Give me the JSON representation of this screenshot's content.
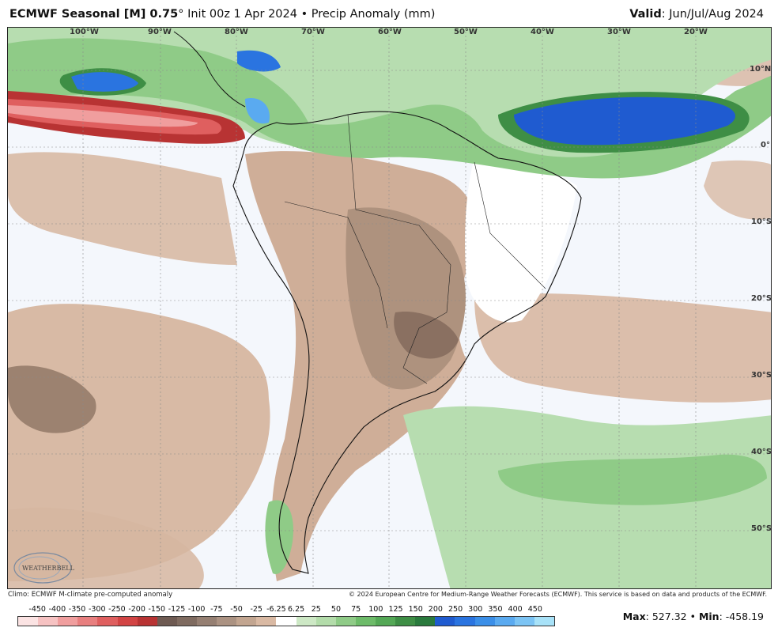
{
  "header": {
    "title_bold": "ECMWF Seasonal [M] 0.75",
    "title_rest": "° Init 00z 1 Apr 2024 • Precip Anomaly (mm)",
    "valid_label": "Valid",
    "valid_value": ": Jun/Jul/Aug 2024"
  },
  "map": {
    "lon_labels": [
      "100°W",
      "90°W",
      "80°W",
      "70°W",
      "60°W",
      "50°W",
      "40°W",
      "30°W",
      "20°W"
    ],
    "lat_labels": [
      "10°N",
      "0°",
      "10°S",
      "20°S",
      "30°S",
      "40°S",
      "50°S"
    ],
    "logo_text": "WEATHERBELL"
  },
  "footer": {
    "climo": "Climo: ECMWF M-climate pre-computed anomaly",
    "copyright": "© 2024 European Centre for Medium-Range Weather Forecasts (ECMWF). This service is based on data and products of the ECMWF.",
    "max_label": "Max",
    "max_value": ": 527.32",
    "sep": " • ",
    "min_label": "Min",
    "min_value": ": -458.19"
  },
  "legend": {
    "ticks": [
      "-450",
      "-400",
      "-350",
      "-300",
      "-250",
      "-200",
      "-150",
      "-125",
      "-100",
      "-75",
      "-50",
      "-25",
      "-6.25",
      "6.25",
      "25",
      "50",
      "75",
      "100",
      "125",
      "150",
      "200",
      "250",
      "300",
      "350",
      "400",
      "450"
    ],
    "colors": [
      "#fbe3e3",
      "#f6c2c2",
      "#f09e9e",
      "#e87f7f",
      "#df5f5f",
      "#d24444",
      "#b83333",
      "#6e5a52",
      "#7f6b60",
      "#957f72",
      "#ab9282",
      "#c2a590",
      "#d9b9a3",
      "#ffffff",
      "#cde8c5",
      "#b3dcaa",
      "#8fcb87",
      "#6dbb69",
      "#54a856",
      "#3e8e45",
      "#2a7a3d",
      "#1f5bd0",
      "#2a74e0",
      "#3b8fe8",
      "#5aaaf0",
      "#7cc4f4",
      "#a8e2f8"
    ]
  }
}
